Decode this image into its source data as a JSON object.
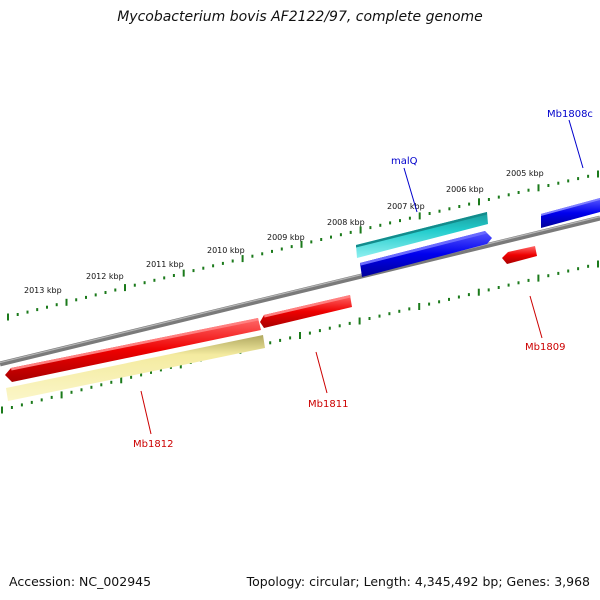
{
  "title": "Mycobacterium bovis AF2122/97, complete genome",
  "footer": {
    "accession": "Accession: NC_002945",
    "summary": "Topology: circular; Length: 4,345,492 bp; Genes: 3,968"
  },
  "colors": {
    "backbone": "#808080",
    "tick": "#1b7a1b",
    "forward_gene": "#0000ee",
    "reverse_gene": "#ee0000",
    "malq": "#22cccc",
    "mb1812_bar": "#f4eba0"
  },
  "scale_labels": [
    "2013 kbp",
    "2012 kbp",
    "2011 kbp",
    "2010 kbp",
    "2009 kbp",
    "2008 kbp",
    "2007 kbp",
    "2006 kbp",
    "2005 kbp"
  ],
  "genes": [
    {
      "name": "Mb1808c",
      "color": "#0000cc"
    },
    {
      "name": "malQ",
      "color": "#0000cc"
    },
    {
      "name": "Mb1809",
      "color": "#cc0000"
    },
    {
      "name": "Mb1811",
      "color": "#cc0000"
    },
    {
      "name": "Mb1812",
      "color": "#cc0000"
    }
  ]
}
